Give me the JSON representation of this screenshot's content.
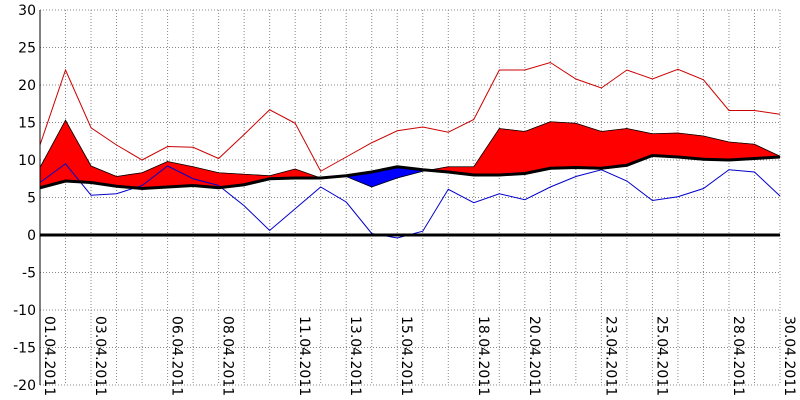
{
  "chart_data": {
    "type": "area",
    "title": "",
    "xlabel": "",
    "ylabel": "",
    "ylim": [
      -20,
      30
    ],
    "yticks": [
      30,
      25,
      20,
      15,
      10,
      5,
      0,
      -5,
      -10,
      -15,
      -20
    ],
    "grid": true,
    "legend": "none",
    "x_tick_labels": [
      "01.04.2011",
      "03.04.2011",
      "06.04.2011",
      "08.04.2011",
      "11.04.2011",
      "13.04.2011",
      "15.04.2011",
      "18.04.2011",
      "20.04.2011",
      "23.04.2011",
      "25.04.2011",
      "28.04.2011",
      "30.04.2011"
    ],
    "x_tick_index": [
      0,
      2,
      5,
      7,
      10,
      12,
      14,
      17,
      19,
      22,
      24,
      27,
      29
    ],
    "dates": [
      "01.04.2011",
      "02.04.2011",
      "03.04.2011",
      "04.04.2011",
      "05.04.2011",
      "06.04.2011",
      "07.04.2011",
      "08.04.2011",
      "09.04.2011",
      "10.04.2011",
      "11.04.2011",
      "12.04.2011",
      "13.04.2011",
      "14.04.2011",
      "15.04.2011",
      "16.04.2011",
      "17.04.2011",
      "18.04.2011",
      "19.04.2011",
      "20.04.2011",
      "21.04.2011",
      "22.04.2011",
      "23.04.2011",
      "24.04.2011",
      "25.04.2011",
      "26.04.2011",
      "27.04.2011",
      "28.04.2011",
      "29.04.2011",
      "30.04.2011"
    ],
    "series": [
      {
        "role": "mean",
        "values": [
          9.0,
          15.3,
          9.2,
          7.8,
          8.3,
          9.8,
          9.1,
          8.3,
          8.1,
          7.9,
          8.8,
          7.6,
          7.8,
          6.4,
          7.6,
          8.5,
          9.1,
          9.1,
          14.2,
          13.8,
          15.1,
          14.9,
          13.8,
          14.2,
          13.5,
          13.6,
          13.2,
          12.4,
          12.1,
          10.5
        ]
      },
      {
        "role": "long-term mean",
        "values": [
          6.3,
          7.2,
          7.0,
          6.5,
          6.2,
          6.4,
          6.6,
          6.3,
          6.7,
          7.5,
          7.6,
          7.6,
          7.9,
          8.4,
          9.1,
          8.7,
          8.4,
          8.0,
          8.0,
          8.2,
          8.9,
          9.0,
          8.9,
          9.3,
          10.6,
          10.4,
          10.1,
          10.0,
          10.2,
          10.4
        ]
      },
      {
        "role": "max",
        "values": [
          12.0,
          22.0,
          14.3,
          12.0,
          10.0,
          11.8,
          11.7,
          10.2,
          13.4,
          16.7,
          14.9,
          8.5,
          10.4,
          12.3,
          13.9,
          14.4,
          13.7,
          15.4,
          22.0,
          22.0,
          23.0,
          20.8,
          19.6,
          22.0,
          20.8,
          22.1,
          20.7,
          16.6,
          16.6,
          16.1
        ]
      },
      {
        "role": "min",
        "values": [
          7.0,
          9.5,
          5.3,
          5.5,
          6.6,
          9.2,
          7.5,
          6.6,
          3.9,
          0.6,
          3.5,
          6.4,
          4.4,
          0.2,
          -0.4,
          0.5,
          6.1,
          4.3,
          5.5,
          4.7,
          6.4,
          7.8,
          8.7,
          7.2,
          4.6,
          5.1,
          6.2,
          8.7,
          8.4,
          5.2
        ]
      }
    ],
    "colors": {
      "above": "#ff0000",
      "below": "#0000ff",
      "max_line": "#cc0000",
      "min_line": "#0000cc",
      "mean_line": "#000000",
      "zero_line": "#000000",
      "grid": "#888888"
    }
  }
}
